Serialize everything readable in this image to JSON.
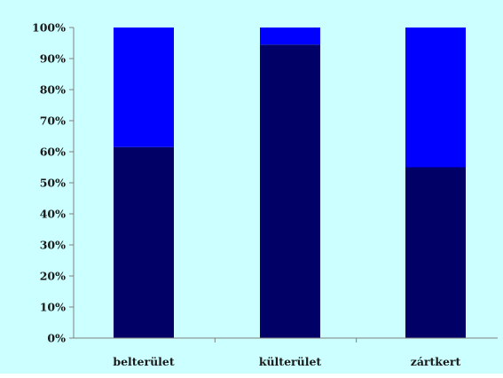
{
  "chart_data": {
    "type": "bar",
    "stacked": true,
    "percent": true,
    "categories": [
      "belterület",
      "külterület",
      "zártkert"
    ],
    "series": [
      {
        "values": [
          61.5,
          94.5,
          55
        ]
      },
      {
        "values": [
          38.5,
          5.5,
          45
        ]
      }
    ],
    "y_ticks": [
      "0%",
      "10%",
      "20%",
      "30%",
      "40%",
      "50%",
      "60%",
      "70%",
      "80%",
      "90%",
      "100%"
    ],
    "ylim": [
      0,
      100
    ],
    "grid": false,
    "legend": "none",
    "colors": {
      "background": "#ccffff",
      "lower_series": "#000066",
      "upper_series": "#0000ff",
      "axis": "#808080"
    }
  }
}
